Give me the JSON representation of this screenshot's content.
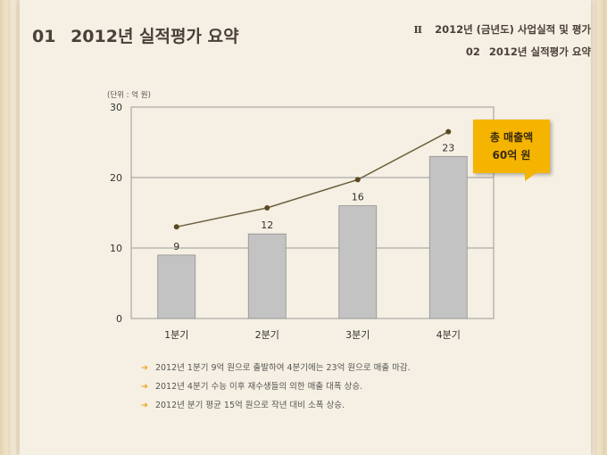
{
  "header": {
    "title_num": "01",
    "title_text": "2012년 실적평가 요약",
    "section1_roman": "Ⅱ",
    "section1_text": "2012년 (금년도) 사업실적 및 평가",
    "section2_num": "02",
    "section2_text": "2012년 실적평가 요약"
  },
  "chart_data": {
    "type": "bar",
    "unit_label": "(단위 : 억 원)",
    "categories": [
      "1분기",
      "2분기",
      "3분기",
      "4분기"
    ],
    "series": [
      {
        "name": "bars",
        "values": [
          9,
          12,
          16,
          23
        ]
      },
      {
        "name": "line",
        "values": [
          13,
          15.7,
          19.7,
          26.5
        ]
      }
    ],
    "data_labels": [
      "9",
      "12",
      "16",
      "23"
    ],
    "yticks": [
      "0",
      "10",
      "20",
      "30"
    ],
    "ylim": [
      0,
      30
    ],
    "bar_color": "#c3c3c3",
    "line_color": "#6d6040"
  },
  "callout": {
    "line1": "총 매출액",
    "line2": "60억 원",
    "color": "#f4b400"
  },
  "notes": [
    "2012년 1분기 9억 원으로  출발하여 4분기에는 23억 원으로 매출 마감.",
    "2012년 4분기 수능 이후 재수생들의 의한 매출 대폭 상승.",
    "2012년 분기 평균 15억 원으로 작년 대비 소폭 상승."
  ],
  "note_arrow": "➔"
}
